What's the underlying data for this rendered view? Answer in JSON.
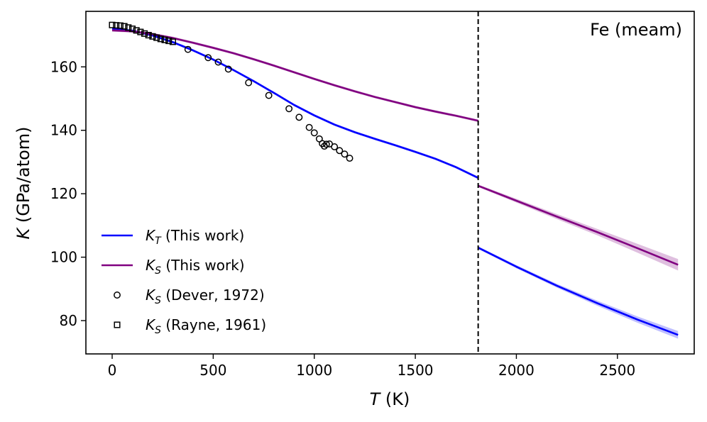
{
  "chart_data": {
    "type": "line",
    "annotation": "Fe (meam)",
    "xlabel": "T (K)",
    "ylabel": "K (GPa/atom)",
    "xlim": [
      -130,
      2880
    ],
    "ylim": [
      69.5,
      177.5
    ],
    "xticks": [
      0,
      500,
      1000,
      1500,
      2000,
      2500
    ],
    "yticks": [
      80,
      100,
      120,
      140,
      160
    ],
    "xtick_labels": [
      "0",
      "500",
      "1000",
      "1500",
      "2000",
      "2500"
    ],
    "ytick_labels": [
      "80",
      "100",
      "120",
      "140",
      "160"
    ],
    "vline_x": 1811,
    "legend_position": "lower-left",
    "colors": {
      "kt": "#0000ff",
      "ks": "#800080",
      "vline": "#000000",
      "markers": "#000000"
    },
    "series": [
      {
        "name": "KT (This work)",
        "legend_main": "K",
        "legend_sub": "T",
        "legend_rest": " (This work)",
        "kind": "line",
        "color": "#0000ff",
        "x": [
          0,
          100,
          200,
          300,
          400,
          500,
          600,
          700,
          800,
          900,
          1000,
          1100,
          1200,
          1300,
          1400,
          1500,
          1600,
          1700,
          1811
        ],
        "y": [
          172,
          171.4,
          169.9,
          167.8,
          165.2,
          162.3,
          159.0,
          155.5,
          151.8,
          148.0,
          144.7,
          141.8,
          139.4,
          137.3,
          135.3,
          133.2,
          131.0,
          128.4,
          125.0
        ],
        "band": 0.4
      },
      {
        "name": "KT (This work) liquid",
        "kind": "line",
        "color": "#0000ff",
        "x": [
          1811,
          2000,
          2200,
          2400,
          2600,
          2800
        ],
        "y": [
          103.0,
          97.0,
          91.0,
          85.5,
          80.3,
          75.5
        ],
        "band": [
          0.4,
          0.5,
          0.6,
          0.8,
          1.0,
          1.2
        ]
      },
      {
        "name": "KS (This work)",
        "legend_main": "K",
        "legend_sub": "S",
        "legend_rest": " (This work)",
        "kind": "line",
        "color": "#800080",
        "x": [
          0,
          100,
          200,
          300,
          400,
          500,
          600,
          700,
          800,
          900,
          1000,
          1100,
          1200,
          1300,
          1400,
          1500,
          1600,
          1700,
          1811
        ],
        "y": [
          171.5,
          171.2,
          170.3,
          169.1,
          167.6,
          166.0,
          164.3,
          162.4,
          160.4,
          158.3,
          156.2,
          154.2,
          152.3,
          150.5,
          148.9,
          147.3,
          145.9,
          144.6,
          143.0
        ],
        "band": 0.4
      },
      {
        "name": "KS (This work) liquid",
        "kind": "line",
        "color": "#800080",
        "x": [
          1811,
          2000,
          2200,
          2400,
          2600,
          2800
        ],
        "y": [
          122.5,
          117.8,
          112.8,
          107.9,
          102.8,
          97.6
        ],
        "band": [
          0.4,
          0.6,
          0.8,
          1.0,
          1.4,
          1.8
        ]
      },
      {
        "name": "KS (Dever, 1972)",
        "legend_main": "K",
        "legend_sub": "S",
        "legend_rest": " (Dever, 1972)",
        "kind": "circle",
        "x": [
          375,
          475,
          525,
          575,
          675,
          775,
          875,
          925,
          975,
          1000,
          1025,
          1040,
          1050,
          1060,
          1075,
          1100,
          1125,
          1150,
          1175
        ],
        "y": [
          165.5,
          162.9,
          161.5,
          159.3,
          155.0,
          151.0,
          146.8,
          144.1,
          140.9,
          139.2,
          137.3,
          135.8,
          135.0,
          135.6,
          135.7,
          134.8,
          133.6,
          132.5,
          131.2
        ]
      },
      {
        "name": "KS (Rayne, 1961)",
        "legend_main": "K",
        "legend_sub": "S",
        "legend_rest": " (Rayne, 1961)",
        "kind": "square",
        "x": [
          0,
          20,
          40,
          60,
          80,
          100,
          120,
          140,
          160,
          180,
          200,
          220,
          240,
          260,
          280,
          300
        ],
        "y": [
          173.2,
          173.1,
          173.0,
          172.8,
          172.4,
          172.0,
          171.5,
          171.0,
          170.5,
          170.0,
          169.6,
          169.2,
          168.8,
          168.5,
          168.2,
          167.9
        ]
      }
    ],
    "legend_order": [
      0,
      2,
      4,
      5
    ]
  }
}
